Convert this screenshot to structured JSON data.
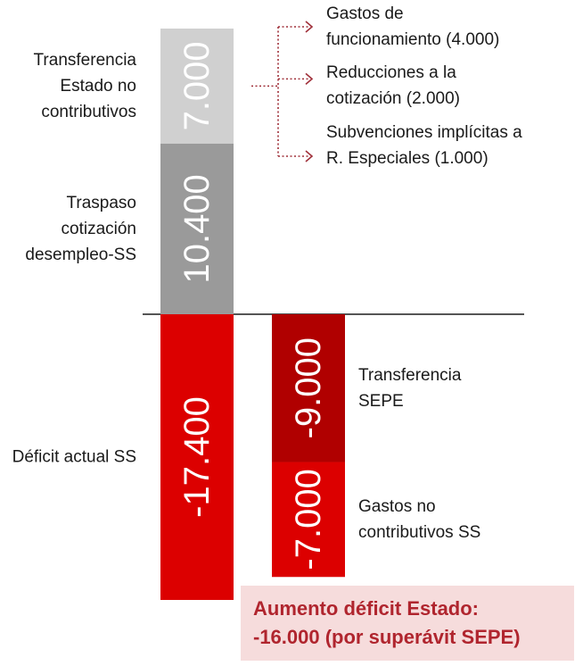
{
  "chart_data": {
    "type": "bar",
    "orientation": "vertical-stacked-waterfall",
    "baseline": 0,
    "bars": [
      {
        "segments": [
          {
            "value": 10400,
            "label": "10.400",
            "color": "#9a9a9a",
            "name_lines": [
              "Traspaso",
              "cotización",
              "desempleo-SS"
            ]
          },
          {
            "value": 7000,
            "label": "7.000",
            "color": "#d0d0d0",
            "name_lines": [
              "Transferencia",
              "Estado  no",
              "contributivos"
            ]
          },
          {
            "value": -17400,
            "label": "-17.400",
            "color": "#dc0000",
            "name_lines": [
              "Déficit actual SS"
            ]
          }
        ]
      },
      {
        "segments": [
          {
            "value": -9000,
            "label": "-9.000",
            "color": "#b00000",
            "name_lines": [
              "Transferencia",
              "SEPE"
            ]
          },
          {
            "value": -7000,
            "label": "-7.000",
            "color": "#dc0000",
            "name_lines": [
              "Gastos no",
              "contributivos SS"
            ]
          }
        ]
      }
    ],
    "breakdown": {
      "of_label": "7.000",
      "items": [
        [
          "Gastos de",
          "funcionamiento (4.000)"
        ],
        [
          "Reducciones a la",
          "cotización (2.000)"
        ],
        [
          "Subvenciones implícitas a",
          "R. Especiales (1.000)"
        ]
      ]
    }
  },
  "colors": {
    "arrow": "#a0303a",
    "callout_bg": "#f6dcdc",
    "callout_text": "#b0252e",
    "axis": "#555555"
  },
  "callout": {
    "line1": "Aumento déficit Estado:",
    "line2": "-16.000 (por superávit SEPE)"
  }
}
